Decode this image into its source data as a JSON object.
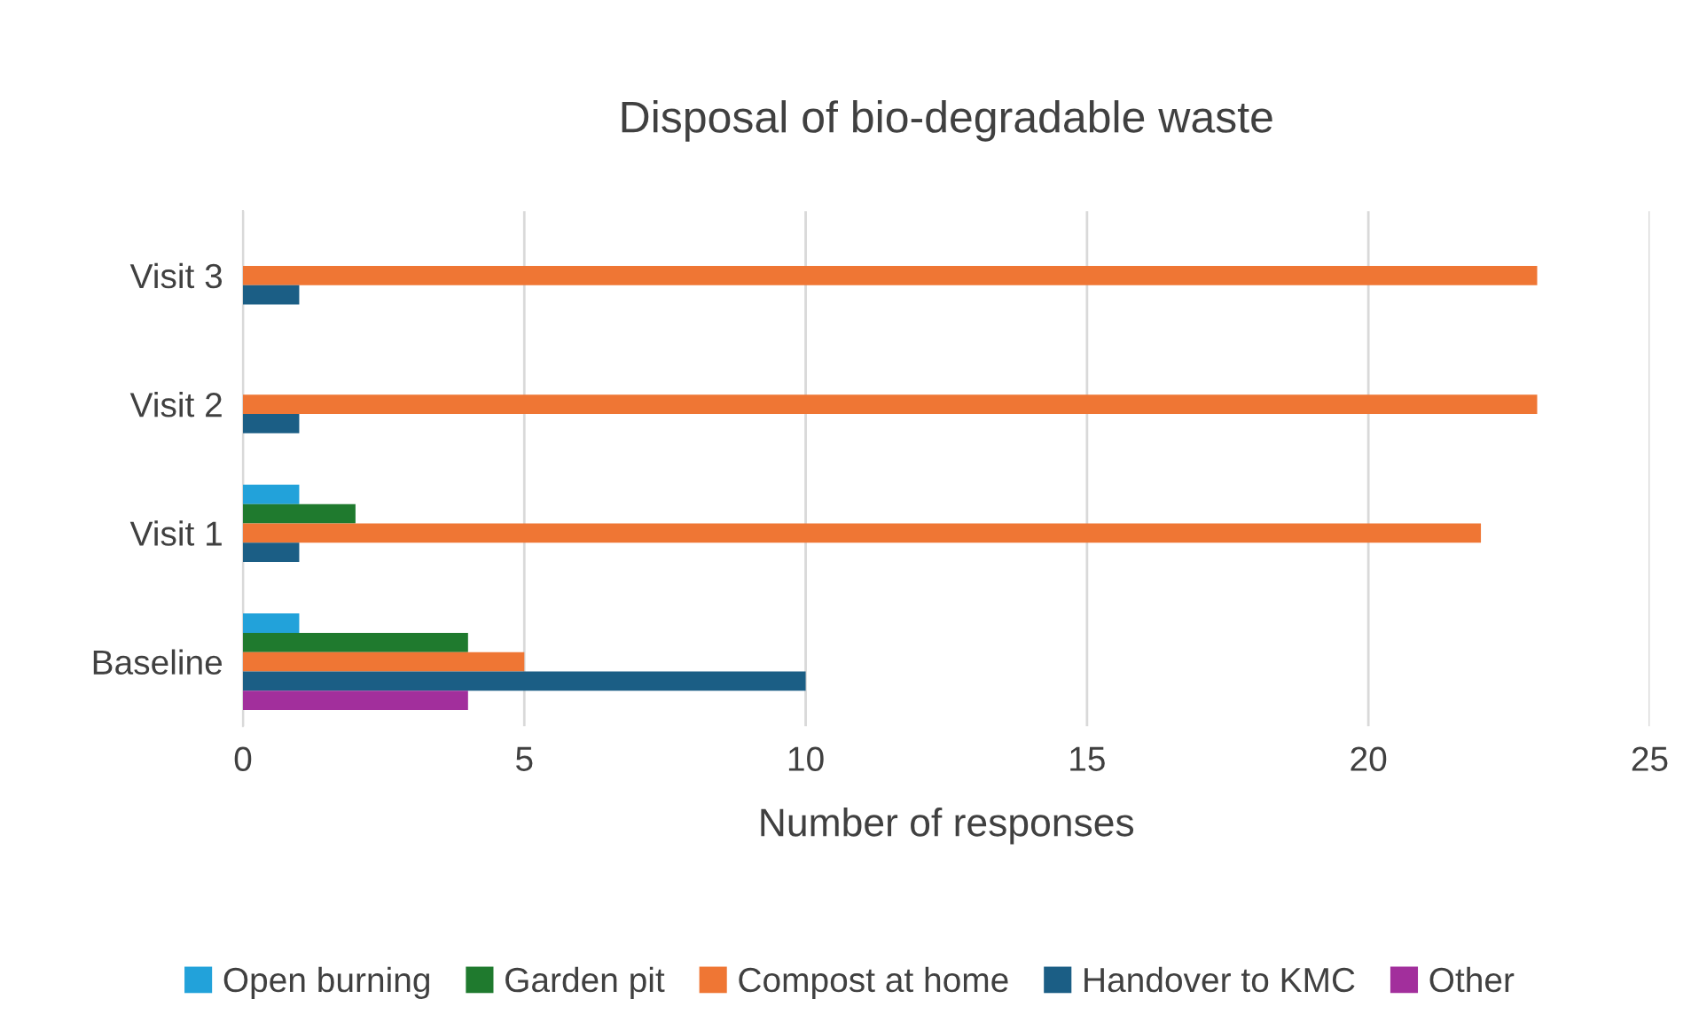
{
  "chart_data": {
    "type": "bar",
    "orientation": "horizontal",
    "title": "Disposal of bio-degradable waste",
    "xlabel": "Number of responses",
    "categories": [
      "Visit 3",
      "Visit 2",
      "Visit 1",
      "Baseline"
    ],
    "series": [
      {
        "name": "Open burning",
        "color": "#22a2da",
        "values": [
          null,
          null,
          1,
          1
        ]
      },
      {
        "name": "Garden pit",
        "color": "#1f7a2e",
        "values": [
          null,
          null,
          2,
          4
        ]
      },
      {
        "name": "Compost at home",
        "color": "#ef7634",
        "values": [
          23,
          23,
          22,
          5
        ]
      },
      {
        "name": "Handover to KMC",
        "color": "#1b5e85",
        "values": [
          1,
          1,
          1,
          10
        ]
      },
      {
        "name": "Other",
        "color": "#a22f9c",
        "values": [
          null,
          null,
          null,
          4
        ]
      }
    ],
    "xlim": [
      0,
      25
    ],
    "xticks": [
      0,
      5,
      10,
      15,
      20,
      25
    ],
    "grid": "x",
    "legend": "bottom"
  }
}
